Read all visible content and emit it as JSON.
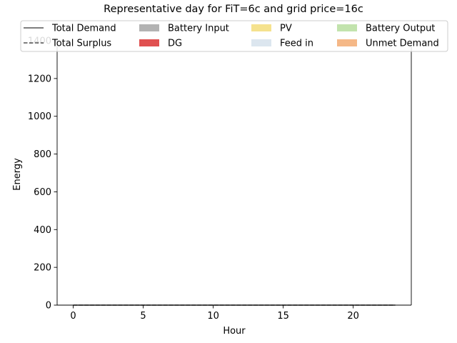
{
  "chart_data": {
    "type": "area",
    "title": "Representative day for FiT=6c and grid price=16c",
    "xlabel": "Hour",
    "ylabel": "Energy",
    "xlim": [
      -1.15,
      24.15
    ],
    "ylim": [
      0,
      1400
    ],
    "xticks": [
      0,
      5,
      10,
      15,
      20
    ],
    "yticks": [
      0,
      200,
      400,
      600,
      800,
      1000,
      1200,
      1400
    ],
    "x": [
      0,
      1,
      2,
      3,
      4,
      5,
      6,
      7,
      8,
      9,
      10,
      11,
      12,
      13,
      14,
      15,
      16,
      17,
      18,
      19,
      20,
      21,
      22,
      23
    ],
    "grid": false,
    "legend_position": "top-center",
    "legend_columns": 4,
    "series": [
      {
        "name": "Total Demand",
        "kind": "line",
        "style": "solid",
        "color": "#555555",
        "values": [
          0,
          0,
          0,
          0,
          0,
          0,
          0,
          0,
          0,
          0,
          0,
          0,
          0,
          0,
          0,
          0,
          0,
          0,
          0,
          0,
          0,
          0,
          0,
          0
        ]
      },
      {
        "name": "Total Surplus",
        "kind": "line",
        "style": "dashed",
        "color": "#555555",
        "values": [
          0,
          0,
          0,
          0,
          0,
          0,
          0,
          0,
          0,
          0,
          0,
          0,
          0,
          0,
          0,
          0,
          0,
          0,
          0,
          0,
          0,
          0,
          0,
          0
        ]
      },
      {
        "name": "Battery Input",
        "kind": "area",
        "color": "#b3b3b3",
        "values": [
          0,
          0,
          0,
          0,
          0,
          0,
          0,
          0,
          0,
          0,
          0,
          0,
          0,
          0,
          0,
          0,
          0,
          0,
          0,
          0,
          0,
          0,
          0,
          0
        ]
      },
      {
        "name": "DG",
        "kind": "area",
        "color": "#e05050",
        "values": [
          0,
          0,
          0,
          0,
          0,
          0,
          0,
          0,
          0,
          0,
          0,
          0,
          0,
          0,
          0,
          0,
          0,
          0,
          0,
          0,
          0,
          0,
          0,
          0
        ]
      },
      {
        "name": "PV",
        "kind": "area",
        "color": "#f5e28e",
        "values": [
          0,
          0,
          0,
          0,
          0,
          0,
          0,
          0,
          0,
          0,
          0,
          0,
          0,
          0,
          0,
          0,
          0,
          0,
          0,
          0,
          0,
          0,
          0,
          0
        ]
      },
      {
        "name": "Feed in",
        "kind": "area",
        "color": "#dce6ef",
        "values": [
          0,
          0,
          0,
          0,
          0,
          0,
          0,
          0,
          0,
          0,
          0,
          0,
          0,
          0,
          0,
          0,
          0,
          0,
          0,
          0,
          0,
          0,
          0,
          0
        ]
      },
      {
        "name": "Battery Output",
        "kind": "area",
        "color": "#c2e3ad",
        "values": [
          0,
          0,
          0,
          0,
          0,
          0,
          0,
          0,
          0,
          0,
          0,
          0,
          0,
          0,
          0,
          0,
          0,
          0,
          0,
          0,
          0,
          0,
          0,
          0
        ]
      },
      {
        "name": "Unmet Demand",
        "kind": "area",
        "color": "#f5b887",
        "values": [
          0,
          0,
          0,
          0,
          0,
          0,
          0,
          0,
          0,
          0,
          0,
          0,
          0,
          0,
          0,
          0,
          0,
          0,
          0,
          0,
          0,
          0,
          0,
          0
        ]
      }
    ]
  }
}
